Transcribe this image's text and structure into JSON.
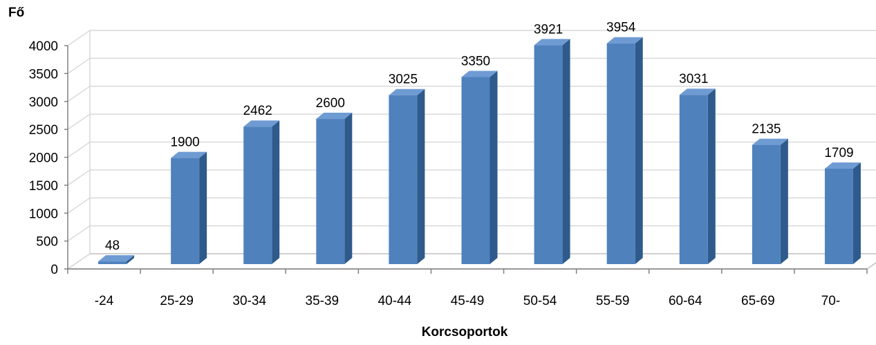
{
  "chart_data": {
    "type": "bar",
    "style": "3d-column",
    "title": "",
    "ylabel": "Fő",
    "xlabel": "Korcsoportok",
    "categories": [
      "-24",
      "25-29",
      "30-34",
      "35-39",
      "40-44",
      "45-49",
      "50-54",
      "55-59",
      "60-64",
      "65-69",
      "70-"
    ],
    "values": [
      48,
      1900,
      2462,
      2600,
      3025,
      3350,
      3921,
      3954,
      3031,
      2135,
      1709
    ],
    "ylim": [
      0,
      4000
    ],
    "yticks": [
      0,
      500,
      1000,
      1500,
      2000,
      2500,
      3000,
      3500,
      4000
    ],
    "grid": true,
    "legend": "none",
    "colors": {
      "bar_front": "#4F81BD",
      "bar_side": "#2E5A8C",
      "bar_top": "#6F9BD3",
      "grid": "#D9D9D9",
      "wall": "#BFBFBF"
    }
  }
}
